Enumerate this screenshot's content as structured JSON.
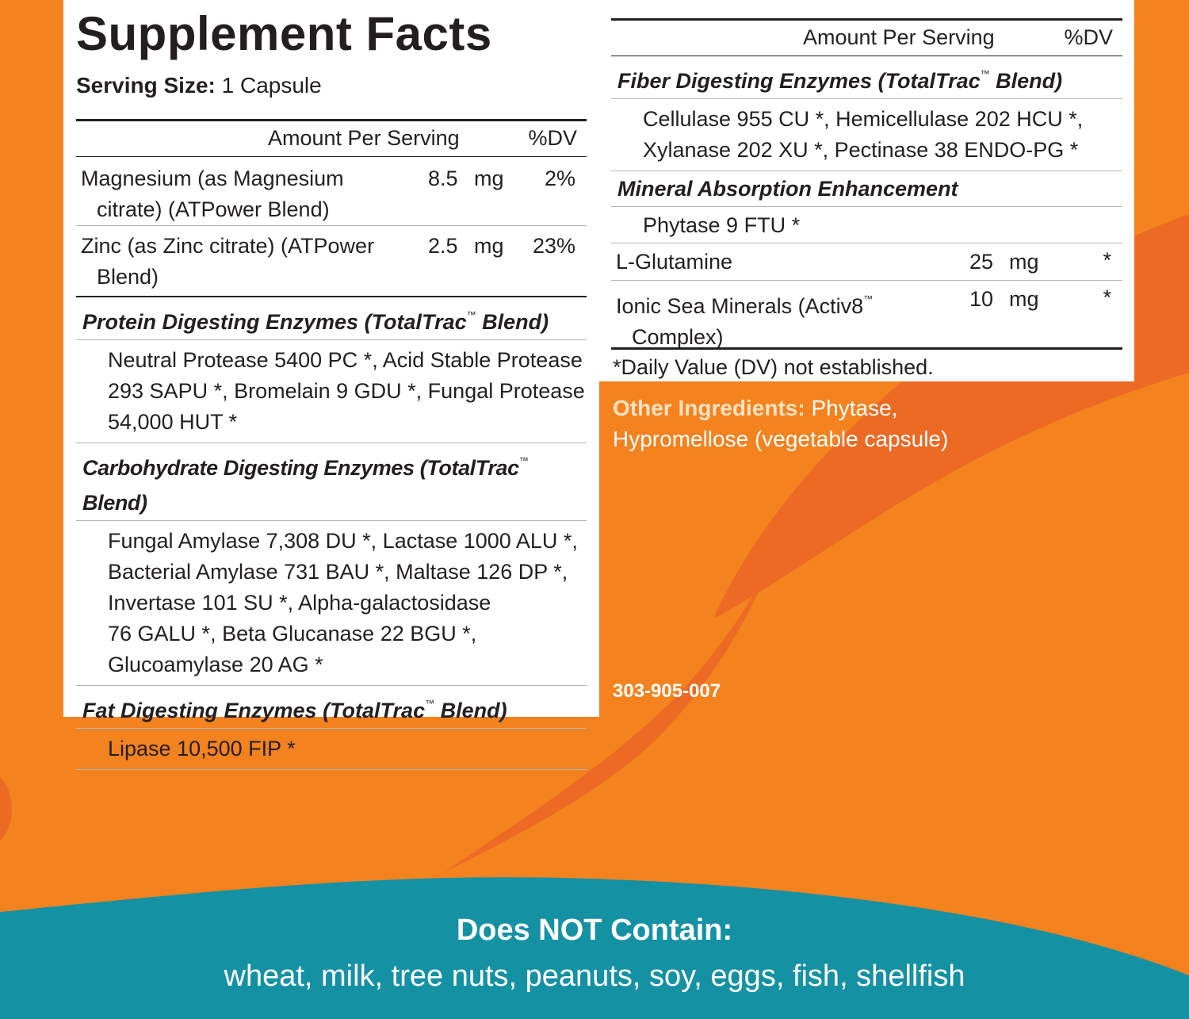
{
  "colors": {
    "orange": "#f3821f",
    "orange_dark": "#ec6a24",
    "teal": "#1591a4",
    "text": "#231f20"
  },
  "label": {
    "title": "Supplement Facts",
    "serving_label": "Serving Size:",
    "serving_value": "1 Capsule",
    "amount_header": "Amount Per Serving",
    "dv_header": "%DV",
    "tm": "™",
    "nutrients": [
      {
        "line1": "Magnesium (as Magnesium",
        "line2": "citrate) (ATPower Blend)",
        "amount": "8.5",
        "unit": "mg",
        "dv": "2%"
      },
      {
        "line1": "Zinc (as Zinc citrate) (ATPower",
        "line2": "Blend)",
        "amount": "2.5",
        "unit": "mg",
        "dv": "23%"
      }
    ],
    "protein": {
      "title": "Protein Digesting Enzymes (TotalTrac",
      "title_end": " Blend)",
      "lines": [
        "Neutral Protease 5400 PC *, Acid Stable Protease",
        "293 SAPU *, Bromelain 9 GDU *, Fungal Protease",
        "54,000 HUT *"
      ]
    },
    "carb": {
      "title": "Carbohydrate Digesting Enzymes (TotalTrac",
      "title_end": " Blend)",
      "lines": [
        "Fungal Amylase 7,308 DU *, Lactase 1000 ALU *,",
        "Bacterial Amylase 731 BAU *, Maltase 126 DP *,",
        "Invertase 101 SU *, Alpha-galactosidase",
        "76 GALU *, Beta Glucanase 22 BGU *,",
        "Glucoamylase 20 AG *"
      ]
    },
    "fat": {
      "title": "Fat Digesting Enzymes (TotalTrac",
      "title_end": " Blend)",
      "lines": [
        "Lipase 10,500 FIP *"
      ]
    },
    "fiber": {
      "title": "Fiber Digesting Enzymes (TotalTrac",
      "title_end": " Blend)",
      "lines": [
        "Cellulase 955 CU *, Hemicellulase 202 HCU *,",
        "Xylanase 202 XU *, Pectinase 38 ENDO-PG *"
      ]
    },
    "mineral": {
      "title": "Mineral Absorption Enhancement",
      "lines": [
        "Phytase 9 FTU *"
      ]
    },
    "glutamine": {
      "name": "L-Glutamine",
      "amount": "25",
      "unit": "mg",
      "dv": "*"
    },
    "ionic": {
      "line1": "Ionic Sea Minerals (Activ8",
      "line2": "Complex)",
      "amount": "10",
      "unit": "mg",
      "dv": "*"
    },
    "footnote": "*Daily Value (DV) not established."
  },
  "other_ingredients": {
    "label": "Other Ingredients:",
    "text_1": "Phytase,",
    "text_2": "Hypromellose (vegetable capsule)"
  },
  "product_code": "303-905-007",
  "allergen": {
    "title": "Does NOT Contain:",
    "list": "wheat, milk, tree nuts, peanuts, soy, eggs, fish, shellfish"
  }
}
